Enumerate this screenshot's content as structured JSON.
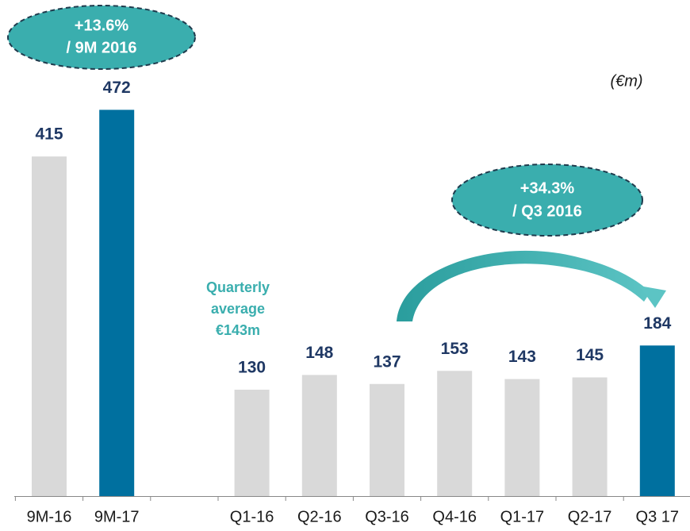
{
  "chart_data": {
    "type": "bar",
    "categories": [
      "9M-16",
      "9M-17",
      null,
      "Q1-16",
      "Q2-16",
      "Q3-16",
      "Q4-16",
      "Q1-17",
      "Q2-17",
      "Q3 17"
    ],
    "values": [
      415,
      472,
      null,
      130,
      148,
      137,
      153,
      143,
      145,
      184
    ],
    "colors": [
      "#d9d9d9",
      "#00709f",
      null,
      "#d9d9d9",
      "#d9d9d9",
      "#d9d9d9",
      "#d9d9d9",
      "#d9d9d9",
      "#d9d9d9",
      "#00709f"
    ],
    "ylim": [
      0,
      500
    ],
    "unit": "(€m)",
    "callouts": [
      [
        "+13.6%",
        "/ 9M 2016"
      ],
      [
        "+34.3%",
        "/ Q3 2016"
      ]
    ],
    "note": [
      "Quarterly",
      "average",
      "€143m"
    ]
  }
}
